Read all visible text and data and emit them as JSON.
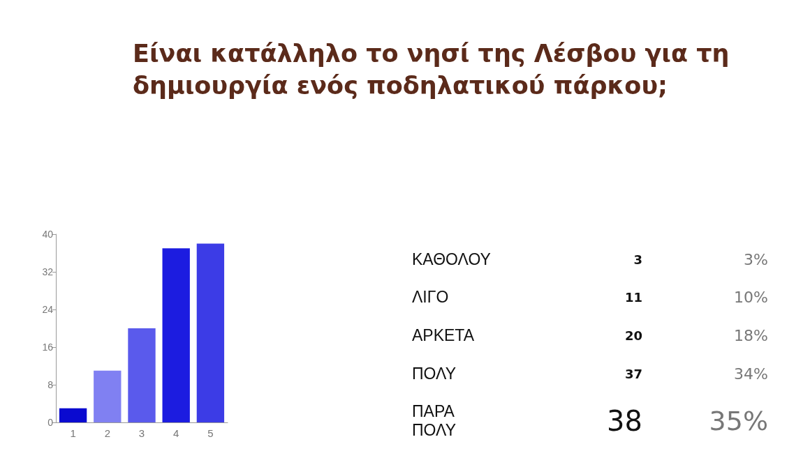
{
  "chart_data": [
    {
      "type": "bar",
      "title": "Είναι κατάλληλο το νησί της Λέσβου για τη δημιουργία ενός ποδηλατικού πάρκου;",
      "categories": [
        "1",
        "2",
        "3",
        "4",
        "5"
      ],
      "values": [
        3,
        11,
        20,
        37,
        38
      ],
      "colors": [
        "#0a0ad0",
        "#8080f2",
        "#5a5aec",
        "#1c1ce0",
        "#3c3ce6"
      ],
      "ylim": [
        0,
        40
      ],
      "yticks": [
        0,
        8,
        16,
        24,
        32,
        40
      ]
    },
    {
      "type": "other",
      "annotations": [
        "ΚΑΘΟΛΟΥ",
        "3",
        "3%",
        "ΛΙΓΟ",
        "11",
        "10%",
        "ΑΡΚΕΤΑ",
        "20",
        "18%",
        "ΠΟΛΥ",
        "37",
        "34%",
        "ΠΑΡΑ ΠΟΛΥ",
        "38",
        "35%"
      ]
    }
  ]
}
